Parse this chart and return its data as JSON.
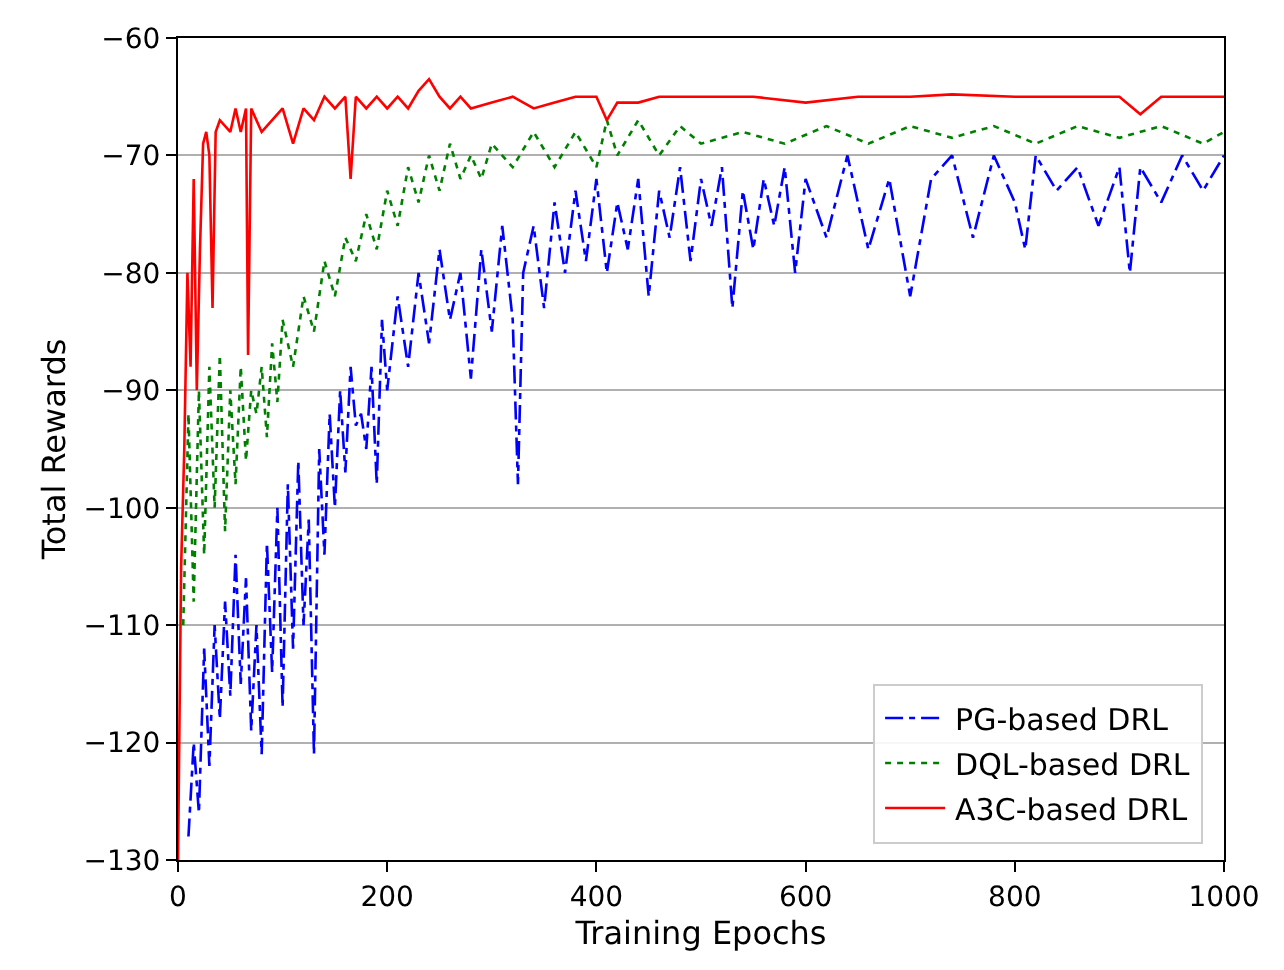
{
  "chart_data": {
    "type": "line",
    "xlabel": "Training Epochs",
    "ylabel": "Total Rewards",
    "xlim": [
      0,
      1000
    ],
    "xticks": [
      0,
      200,
      400,
      600,
      800,
      1000
    ],
    "ylim": [
      -130,
      -60
    ],
    "yticks": [
      -130,
      -120,
      -110,
      -100,
      -90,
      -80,
      -70,
      -60
    ],
    "grid": "y",
    "legend": "bottom right",
    "marker": "none",
    "series": [
      {
        "name": "PG-based DRL",
        "color": "#0000ff",
        "line_style": "dashdot",
        "x": [
          10,
          15,
          20,
          25,
          30,
          35,
          40,
          45,
          50,
          55,
          60,
          65,
          70,
          75,
          80,
          85,
          90,
          95,
          100,
          105,
          110,
          115,
          120,
          125,
          130,
          135,
          140,
          145,
          150,
          155,
          160,
          165,
          170,
          175,
          180,
          185,
          190,
          195,
          200,
          210,
          220,
          230,
          240,
          250,
          260,
          270,
          280,
          290,
          300,
          310,
          320,
          325,
          330,
          340,
          350,
          360,
          370,
          380,
          390,
          400,
          410,
          420,
          430,
          440,
          450,
          460,
          470,
          480,
          490,
          500,
          510,
          520,
          530,
          540,
          550,
          560,
          570,
          580,
          590,
          600,
          620,
          640,
          660,
          680,
          700,
          720,
          740,
          760,
          780,
          800,
          810,
          820,
          840,
          860,
          880,
          900,
          910,
          920,
          940,
          960,
          980,
          1000
        ],
        "values": [
          -128,
          -120,
          -126,
          -112,
          -122,
          -110,
          -118,
          -108,
          -116,
          -104,
          -115,
          -106,
          -119,
          -110,
          -121,
          -103,
          -114,
          -100,
          -117,
          -98,
          -112,
          -96,
          -110,
          -101,
          -121,
          -95,
          -104,
          -92,
          -100,
          -90,
          -97,
          -88,
          -93,
          -92,
          -95,
          -88,
          -98,
          -84,
          -90,
          -82,
          -88,
          -80,
          -86,
          -78,
          -84,
          -80,
          -89,
          -78,
          -85,
          -76,
          -84,
          -98,
          -80,
          -76,
          -83,
          -74,
          -80,
          -73,
          -79,
          -72,
          -80,
          -74,
          -78,
          -72,
          -82,
          -73,
          -77,
          -71,
          -79,
          -72,
          -76,
          -71,
          -83,
          -73,
          -78,
          -72,
          -76,
          -71,
          -80,
          -72,
          -77,
          -70,
          -78,
          -72,
          -82,
          -72,
          -70,
          -77,
          -70,
          -74,
          -78,
          -70,
          -73,
          -71,
          -76,
          -71,
          -80,
          -71,
          -74,
          -70,
          -73,
          -70
        ]
      },
      {
        "name": "DQL-based DRL",
        "color": "#008000",
        "line_style": "dotted",
        "x": [
          5,
          10,
          15,
          20,
          25,
          30,
          35,
          40,
          45,
          50,
          55,
          60,
          65,
          70,
          75,
          80,
          85,
          90,
          95,
          100,
          110,
          120,
          130,
          140,
          150,
          160,
          170,
          180,
          190,
          200,
          210,
          220,
          230,
          240,
          250,
          260,
          270,
          280,
          290,
          300,
          320,
          340,
          360,
          380,
          400,
          410,
          420,
          440,
          460,
          480,
          500,
          540,
          580,
          620,
          660,
          700,
          740,
          780,
          820,
          860,
          900,
          940,
          980,
          1000
        ],
        "values": [
          -110,
          -92,
          -108,
          -90,
          -104,
          -88,
          -100,
          -87,
          -102,
          -90,
          -98,
          -88,
          -96,
          -90,
          -92,
          -88,
          -94,
          -86,
          -91,
          -84,
          -88,
          -82,
          -85,
          -79,
          -82,
          -77,
          -79,
          -75,
          -78,
          -73,
          -76,
          -71,
          -74,
          -70,
          -73,
          -69,
          -72,
          -70,
          -72,
          -69,
          -71,
          -68,
          -71,
          -68,
          -71,
          -67,
          -70,
          -67,
          -70,
          -67.5,
          -69,
          -68,
          -69,
          -67.5,
          -69,
          -67.5,
          -68.5,
          -67.5,
          -69,
          -67.5,
          -68.5,
          -67.5,
          -69,
          -68
        ]
      },
      {
        "name": "A3C-based DRL",
        "color": "#ff0000",
        "line_style": "solid",
        "x": [
          0,
          3,
          6,
          9,
          12,
          15,
          18,
          21,
          24,
          27,
          30,
          33,
          36,
          40,
          50,
          55,
          60,
          65,
          67,
          70,
          80,
          90,
          100,
          110,
          120,
          130,
          140,
          150,
          160,
          165,
          170,
          180,
          190,
          200,
          210,
          220,
          230,
          240,
          250,
          260,
          270,
          280,
          300,
          320,
          340,
          360,
          380,
          400,
          410,
          420,
          440,
          460,
          500,
          550,
          600,
          650,
          700,
          740,
          800,
          850,
          900,
          920,
          940,
          1000
        ],
        "values": [
          -130,
          -105,
          -95,
          -80,
          -88,
          -72,
          -90,
          -78,
          -69,
          -68,
          -70,
          -83,
          -68,
          -67,
          -68,
          -66,
          -68,
          -66,
          -87,
          -66,
          -68,
          -67,
          -66,
          -69,
          -66,
          -67,
          -65,
          -66,
          -65,
          -72,
          -65,
          -66,
          -65,
          -66,
          -65,
          -66,
          -64.5,
          -63.5,
          -65,
          -66,
          -65,
          -66,
          -65.5,
          -65,
          -66,
          -65.5,
          -65,
          -65,
          -67,
          -65.5,
          -65.5,
          -65,
          -65,
          -65,
          -65.5,
          -65,
          -65,
          -64.8,
          -65,
          -65,
          -65,
          -66.5,
          -65,
          -65
        ]
      }
    ]
  }
}
